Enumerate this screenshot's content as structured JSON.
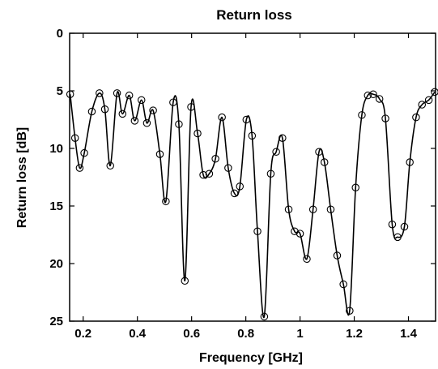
{
  "chart_data": {
    "type": "line",
    "title": "Return loss",
    "xlabel": "Frequency [GHz]",
    "ylabel": "Return loss [dB]",
    "xlim": [
      0.15,
      1.5
    ],
    "ylim": [
      0,
      25
    ],
    "y_inverted": true,
    "grid": false,
    "x_ticks": [
      0.2,
      0.4,
      0.6,
      0.8,
      1,
      1.2,
      1.4
    ],
    "x_tick_labels": [
      "0.2",
      "0.4",
      "0.6",
      "0.8",
      "1",
      "1.2",
      "1.4"
    ],
    "y_ticks": [
      0,
      5,
      10,
      15,
      20,
      25
    ],
    "y_tick_labels": [
      "0",
      "5",
      "10",
      "15",
      "20",
      "25"
    ],
    "series": [
      {
        "color": "#000000",
        "marker": "circle",
        "x": [
          0.152,
          0.17,
          0.187,
          0.204,
          0.232,
          0.26,
          0.28,
          0.3,
          0.325,
          0.345,
          0.37,
          0.39,
          0.415,
          0.435,
          0.458,
          0.483,
          0.505,
          0.532,
          0.553,
          0.575,
          0.598,
          0.622,
          0.643,
          0.665,
          0.688,
          0.712,
          0.735,
          0.758,
          0.778,
          0.802,
          0.823,
          0.843,
          0.868,
          0.892,
          0.912,
          0.935,
          0.958,
          0.98,
          1.0,
          1.025,
          1.048,
          1.07,
          1.09,
          1.113,
          1.137,
          1.16,
          1.183,
          1.205,
          1.228,
          1.25,
          1.27,
          1.293,
          1.315,
          1.34,
          1.36,
          1.385,
          1.405,
          1.428,
          1.45,
          1.475,
          1.497
        ],
        "y": [
          5.3,
          9.1,
          11.7,
          10.4,
          6.8,
          5.2,
          6.6,
          11.5,
          5.2,
          7.0,
          5.4,
          7.6,
          5.8,
          7.8,
          6.7,
          10.5,
          14.6,
          6.0,
          7.9,
          21.5,
          6.4,
          8.7,
          12.3,
          12.2,
          10.9,
          7.3,
          11.7,
          13.9,
          13.3,
          7.5,
          8.9,
          17.2,
          24.6,
          12.2,
          10.3,
          9.1,
          15.3,
          17.2,
          17.4,
          19.6,
          15.3,
          10.3,
          11.2,
          15.3,
          19.3,
          21.8,
          24.1,
          13.4,
          7.1,
          5.4,
          5.3,
          5.7,
          7.4,
          16.6,
          17.7,
          16.8,
          11.2,
          7.3,
          6.2,
          5.8,
          5.1
        ]
      }
    ]
  }
}
